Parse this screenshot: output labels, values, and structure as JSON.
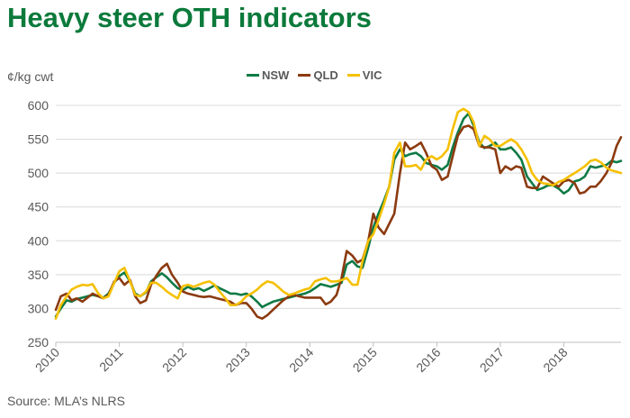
{
  "title": "Heavy steer OTH indicators",
  "source": "Source: MLA’s NLRS",
  "colors": {
    "NSW": "#0e7a45",
    "QLD": "#8b3a0f",
    "VIC": "#f5c000",
    "title": "#0b7a3b"
  },
  "chart_data": {
    "type": "line",
    "title": "Heavy steer OTH indicators",
    "ylabel": "¢/kg cwt",
    "xlabel": "",
    "ylim": [
      250,
      600
    ],
    "xlim": [
      2010,
      2018.9
    ],
    "yticks": [
      250,
      300,
      350,
      400,
      450,
      500,
      550,
      600
    ],
    "xticks": [
      "2010",
      "2011",
      "2012",
      "2013",
      "2014",
      "2015",
      "2016",
      "2017",
      "2018"
    ],
    "grid": "horizontal",
    "legend_position": "top",
    "series": [
      {
        "name": "NSW",
        "x": [
          2010.0,
          2010.08,
          2010.17,
          2010.25,
          2010.33,
          2010.42,
          2010.5,
          2010.58,
          2010.67,
          2010.75,
          2010.83,
          2010.92,
          2011.0,
          2011.08,
          2011.17,
          2011.25,
          2011.33,
          2011.42,
          2011.5,
          2011.58,
          2011.67,
          2011.75,
          2011.83,
          2011.92,
          2012.0,
          2012.08,
          2012.17,
          2012.25,
          2012.33,
          2012.42,
          2012.5,
          2012.58,
          2012.67,
          2012.75,
          2012.83,
          2012.92,
          2013.0,
          2013.08,
          2013.17,
          2013.25,
          2013.33,
          2013.42,
          2013.5,
          2013.58,
          2013.67,
          2013.75,
          2013.83,
          2013.92,
          2014.0,
          2014.08,
          2014.17,
          2014.25,
          2014.33,
          2014.42,
          2014.5,
          2014.58,
          2014.67,
          2014.75,
          2014.83,
          2014.92,
          2015.0,
          2015.08,
          2015.17,
          2015.25,
          2015.33,
          2015.42,
          2015.5,
          2015.58,
          2015.67,
          2015.75,
          2015.83,
          2015.92,
          2016.0,
          2016.08,
          2016.17,
          2016.25,
          2016.33,
          2016.42,
          2016.5,
          2016.58,
          2016.67,
          2016.75,
          2016.83,
          2016.92,
          2017.0,
          2017.08,
          2017.17,
          2017.25,
          2017.33,
          2017.42,
          2017.5,
          2017.58,
          2017.67,
          2017.75,
          2017.83,
          2017.92,
          2018.0,
          2018.08,
          2018.17,
          2018.25,
          2018.33,
          2018.42,
          2018.5,
          2018.58,
          2018.67,
          2018.75,
          2018.83,
          2018.9
        ],
        "y": [
          288,
          300,
          312,
          310,
          314,
          316,
          318,
          320,
          318,
          316,
          322,
          338,
          348,
          353,
          340,
          322,
          318,
          324,
          340,
          346,
          352,
          346,
          338,
          330,
          327,
          332,
          328,
          330,
          326,
          330,
          334,
          330,
          326,
          322,
          322,
          320,
          322,
          318,
          310,
          302,
          306,
          310,
          312,
          314,
          316,
          318,
          320,
          322,
          325,
          330,
          336,
          334,
          332,
          335,
          338,
          365,
          370,
          362,
          360,
          390,
          420,
          440,
          460,
          480,
          520,
          535,
          525,
          528,
          530,
          525,
          515,
          512,
          510,
          505,
          512,
          538,
          560,
          580,
          588,
          570,
          545,
          537,
          540,
          545,
          535,
          535,
          538,
          530,
          520,
          495,
          485,
          475,
          478,
          482,
          482,
          477,
          470,
          475,
          488,
          490,
          495,
          510,
          508,
          510,
          512,
          518,
          516,
          518
        ]
      },
      {
        "name": "QLD",
        "x": [
          2010.0,
          2010.08,
          2010.17,
          2010.25,
          2010.33,
          2010.42,
          2010.5,
          2010.58,
          2010.67,
          2010.75,
          2010.83,
          2010.92,
          2011.0,
          2011.08,
          2011.17,
          2011.25,
          2011.33,
          2011.42,
          2011.5,
          2011.58,
          2011.67,
          2011.75,
          2011.83,
          2011.92,
          2012.0,
          2012.08,
          2012.17,
          2012.25,
          2012.33,
          2012.42,
          2012.5,
          2012.58,
          2012.67,
          2012.75,
          2012.83,
          2012.92,
          2013.0,
          2013.08,
          2013.17,
          2013.25,
          2013.33,
          2013.42,
          2013.5,
          2013.58,
          2013.67,
          2013.75,
          2013.83,
          2013.92,
          2014.0,
          2014.08,
          2014.17,
          2014.25,
          2014.33,
          2014.42,
          2014.5,
          2014.58,
          2014.67,
          2014.75,
          2014.83,
          2014.92,
          2015.0,
          2015.08,
          2015.17,
          2015.25,
          2015.33,
          2015.42,
          2015.5,
          2015.58,
          2015.67,
          2015.75,
          2015.83,
          2015.92,
          2016.0,
          2016.08,
          2016.17,
          2016.25,
          2016.33,
          2016.42,
          2016.5,
          2016.58,
          2016.67,
          2016.75,
          2016.83,
          2016.92,
          2017.0,
          2017.08,
          2017.17,
          2017.25,
          2017.33,
          2017.42,
          2017.5,
          2017.58,
          2017.67,
          2017.75,
          2017.83,
          2017.92,
          2018.0,
          2018.08,
          2018.17,
          2018.25,
          2018.33,
          2018.42,
          2018.5,
          2018.58,
          2018.67,
          2018.75,
          2018.83,
          2018.9
        ],
        "y": [
          298,
          318,
          322,
          312,
          315,
          310,
          316,
          322,
          318,
          315,
          320,
          340,
          345,
          335,
          342,
          318,
          308,
          312,
          335,
          348,
          360,
          366,
          350,
          338,
          325,
          322,
          320,
          318,
          317,
          318,
          316,
          314,
          312,
          310,
          305,
          308,
          308,
          300,
          288,
          285,
          290,
          298,
          305,
          312,
          318,
          320,
          318,
          316,
          316,
          316,
          316,
          306,
          310,
          320,
          345,
          385,
          378,
          368,
          372,
          400,
          440,
          420,
          410,
          425,
          440,
          500,
          545,
          535,
          540,
          545,
          530,
          510,
          505,
          490,
          495,
          525,
          555,
          568,
          570,
          565,
          540,
          538,
          538,
          535,
          500,
          510,
          505,
          510,
          508,
          480,
          478,
          478,
          495,
          490,
          485,
          480,
          488,
          490,
          485,
          470,
          472,
          480,
          480,
          488,
          500,
          515,
          540,
          553
        ]
      },
      {
        "name": "VIC",
        "x": [
          2010.0,
          2010.08,
          2010.17,
          2010.25,
          2010.33,
          2010.42,
          2010.5,
          2010.58,
          2010.67,
          2010.75,
          2010.83,
          2010.92,
          2011.0,
          2011.08,
          2011.17,
          2011.25,
          2011.33,
          2011.42,
          2011.5,
          2011.58,
          2011.67,
          2011.75,
          2011.83,
          2011.92,
          2012.0,
          2012.08,
          2012.17,
          2012.25,
          2012.33,
          2012.42,
          2012.5,
          2012.58,
          2012.67,
          2012.75,
          2012.83,
          2012.92,
          2013.0,
          2013.08,
          2013.17,
          2013.25,
          2013.33,
          2013.42,
          2013.5,
          2013.58,
          2013.67,
          2013.75,
          2013.83,
          2013.92,
          2014.0,
          2014.08,
          2014.17,
          2014.25,
          2014.33,
          2014.42,
          2014.5,
          2014.58,
          2014.67,
          2014.75,
          2014.83,
          2014.92,
          2015.0,
          2015.08,
          2015.17,
          2015.25,
          2015.33,
          2015.42,
          2015.5,
          2015.58,
          2015.67,
          2015.75,
          2015.83,
          2015.92,
          2016.0,
          2016.08,
          2016.17,
          2016.25,
          2016.33,
          2016.42,
          2016.5,
          2016.58,
          2016.67,
          2016.75,
          2016.83,
          2016.92,
          2017.0,
          2017.08,
          2017.17,
          2017.25,
          2017.33,
          2017.42,
          2017.5,
          2017.58,
          2017.67,
          2017.75,
          2017.83,
          2017.92,
          2018.0,
          2018.08,
          2018.17,
          2018.25,
          2018.33,
          2018.42,
          2018.5,
          2018.58,
          2018.67,
          2018.75,
          2018.83,
          2018.9
        ],
        "y": [
          285,
          305,
          318,
          328,
          332,
          335,
          334,
          336,
          322,
          315,
          318,
          338,
          355,
          360,
          340,
          320,
          318,
          325,
          338,
          338,
          332,
          325,
          320,
          315,
          333,
          335,
          332,
          335,
          338,
          340,
          335,
          325,
          315,
          305,
          305,
          310,
          318,
          322,
          328,
          335,
          340,
          338,
          332,
          325,
          320,
          322,
          325,
          328,
          330,
          340,
          343,
          345,
          340,
          340,
          342,
          345,
          335,
          335,
          370,
          400,
          410,
          430,
          455,
          480,
          530,
          545,
          510,
          510,
          512,
          505,
          520,
          525,
          520,
          525,
          535,
          565,
          590,
          595,
          590,
          575,
          540,
          555,
          550,
          540,
          540,
          545,
          550,
          545,
          535,
          520,
          500,
          490,
          485,
          484,
          482,
          487,
          490,
          495,
          500,
          505,
          510,
          518,
          520,
          516,
          508,
          504,
          502,
          500
        ]
      }
    ]
  }
}
